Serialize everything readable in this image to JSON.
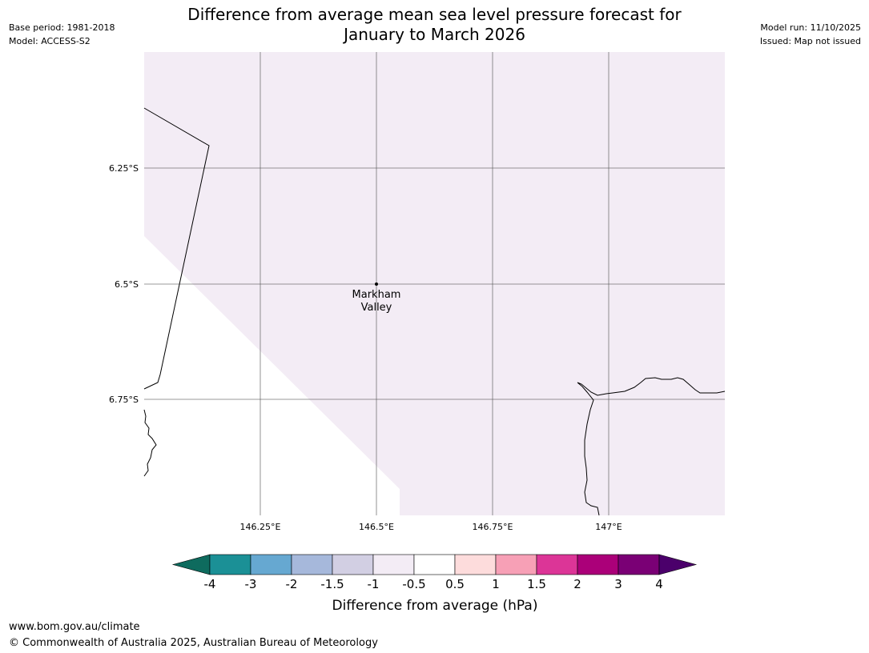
{
  "header": {
    "title_line1": "Difference from average mean sea level pressure forecast for",
    "title_line2": "January to March 2026",
    "base_period": "Base period: 1981-2018",
    "model": "Model: ACCESS-S2",
    "model_run": "Model run: 11/10/2025",
    "issued": "Issued: Map not issued"
  },
  "map": {
    "lon_labels": [
      "146.25°E",
      "146.5°E",
      "146.75°E",
      "147°E"
    ],
    "lat_labels": [
      "6.25°S",
      "6.5°S",
      "6.75°S"
    ],
    "place": {
      "name_line1": "Markham",
      "name_line2": "Valley"
    },
    "fill_color": "#f3ecf5",
    "grid_color": "#555555"
  },
  "legend": {
    "label": "Difference from average (hPa)",
    "ticks": [
      "-4",
      "-3",
      "-2",
      "-1.5",
      "-1",
      "-0.5",
      "0.5",
      "1",
      "1.5",
      "2",
      "3",
      "4"
    ],
    "low_extend_color": "#0e6b5e",
    "high_extend_color": "#4b006b",
    "colors": [
      "#1b9096",
      "#66a8d1",
      "#a6b8db",
      "#d2cfe3",
      "#f3ecf5",
      "#ffffff",
      "#fddcdc",
      "#f7a0b6",
      "#dc3597",
      "#ab0079",
      "#7a0075"
    ]
  },
  "footer": {
    "url": "www.bom.gov.au/climate",
    "copyright": "© Commonwealth of Australia 2025, Australian Bureau of Meteorology"
  }
}
